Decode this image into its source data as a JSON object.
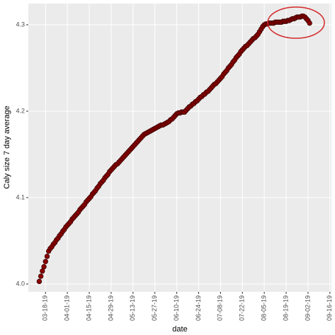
{
  "chart_data": {
    "type": "scatter",
    "x_label": "date",
    "y_label": "Caly size 7 day average",
    "color": "#8b0000",
    "grid": true,
    "xlim": [
      "2019-03-07",
      "2019-09-17"
    ],
    "xticks": [
      {
        "value": "2019-03-18",
        "label": "03-18-19"
      },
      {
        "value": "2019-04-01",
        "label": "04-01-19"
      },
      {
        "value": "2019-04-15",
        "label": "04-15-19"
      },
      {
        "value": "2019-04-29",
        "label": "04-29-19"
      },
      {
        "value": "2019-05-13",
        "label": "05-13-19"
      },
      {
        "value": "2019-05-27",
        "label": "05-27-19"
      },
      {
        "value": "2019-06-10",
        "label": "06-10-19"
      },
      {
        "value": "2019-06-24",
        "label": "06-24-19"
      },
      {
        "value": "2019-07-08",
        "label": "07-08-19"
      },
      {
        "value": "2019-07-22",
        "label": "07-22-19"
      },
      {
        "value": "2019-08-05",
        "label": "08-05-19"
      },
      {
        "value": "2019-08-19",
        "label": "08-19-19"
      },
      {
        "value": "2019-09-02",
        "label": "09-02-19"
      },
      {
        "value": "2019-09-16",
        "label": "09-16-19"
      }
    ],
    "ylim": [
      3.991,
      4.3246
    ],
    "yticks": [
      {
        "value": 4,
        "label": "4.0"
      },
      4.1,
      4.2,
      4.3
    ],
    "x": [
      "2019-03-14",
      "2019-03-15",
      "2019-03-16",
      "2019-03-17",
      "2019-03-18",
      "2019-03-19",
      "2019-03-20",
      "2019-03-21",
      "2019-03-22",
      "2019-03-23",
      "2019-03-24",
      "2019-03-25",
      "2019-03-26",
      "2019-03-27",
      "2019-03-28",
      "2019-03-29",
      "2019-03-30",
      "2019-03-31",
      "2019-04-01",
      "2019-04-02",
      "2019-04-03",
      "2019-04-04",
      "2019-04-05",
      "2019-04-06",
      "2019-04-07",
      "2019-04-08",
      "2019-04-09",
      "2019-04-10",
      "2019-04-11",
      "2019-04-12",
      "2019-04-13",
      "2019-04-14",
      "2019-04-15",
      "2019-04-16",
      "2019-04-17",
      "2019-04-18",
      "2019-04-19",
      "2019-04-20",
      "2019-04-21",
      "2019-04-22",
      "2019-04-23",
      "2019-04-24",
      "2019-04-25",
      "2019-04-26",
      "2019-04-27",
      "2019-04-28",
      "2019-04-29",
      "2019-04-30",
      "2019-05-01",
      "2019-05-02",
      "2019-05-03",
      "2019-05-04",
      "2019-05-05",
      "2019-05-06",
      "2019-05-07",
      "2019-05-08",
      "2019-05-09",
      "2019-05-10",
      "2019-05-11",
      "2019-05-12",
      "2019-05-13",
      "2019-05-14",
      "2019-05-15",
      "2019-05-16",
      "2019-05-17",
      "2019-05-18",
      "2019-05-19",
      "2019-05-20",
      "2019-05-21",
      "2019-05-22",
      "2019-05-23",
      "2019-05-24",
      "2019-05-25",
      "2019-05-26",
      "2019-05-27",
      "2019-05-28",
      "2019-05-29",
      "2019-05-30",
      "2019-05-31",
      "2019-06-01",
      "2019-06-02",
      "2019-06-03",
      "2019-06-04",
      "2019-06-05",
      "2019-06-06",
      "2019-06-07",
      "2019-06-08",
      "2019-06-09",
      "2019-06-10",
      "2019-06-11",
      "2019-06-12",
      "2019-06-13",
      "2019-06-14",
      "2019-06-15",
      "2019-06-16",
      "2019-06-17",
      "2019-06-18",
      "2019-06-19",
      "2019-06-20",
      "2019-06-21",
      "2019-06-22",
      "2019-06-23",
      "2019-06-24",
      "2019-06-25",
      "2019-06-26",
      "2019-06-27",
      "2019-06-28",
      "2019-06-29",
      "2019-06-30",
      "2019-07-01",
      "2019-07-02",
      "2019-07-03",
      "2019-07-04",
      "2019-07-05",
      "2019-07-06",
      "2019-07-07",
      "2019-07-08",
      "2019-07-09",
      "2019-07-10",
      "2019-07-11",
      "2019-07-12",
      "2019-07-13",
      "2019-07-14",
      "2019-07-15",
      "2019-07-16",
      "2019-07-17",
      "2019-07-18",
      "2019-07-19",
      "2019-07-20",
      "2019-07-21",
      "2019-07-22",
      "2019-07-23",
      "2019-07-24",
      "2019-07-25",
      "2019-07-26",
      "2019-07-27",
      "2019-07-28",
      "2019-07-29",
      "2019-07-30",
      "2019-07-31",
      "2019-08-01",
      "2019-08-02",
      "2019-08-03",
      "2019-08-04",
      "2019-08-05",
      "2019-08-06",
      "2019-08-07",
      "2019-08-08",
      "2019-08-09",
      "2019-08-10",
      "2019-08-11",
      "2019-08-12",
      "2019-08-13",
      "2019-08-14",
      "2019-08-15",
      "2019-08-16",
      "2019-08-17",
      "2019-08-18",
      "2019-08-19",
      "2019-08-20",
      "2019-08-21",
      "2019-08-22",
      "2019-08-23",
      "2019-08-24",
      "2019-08-25",
      "2019-08-26",
      "2019-08-27",
      "2019-08-28",
      "2019-08-29",
      "2019-08-30",
      "2019-08-31",
      "2019-09-01",
      "2019-09-02",
      "2019-09-03"
    ],
    "values": [
      4.003,
      4.009,
      4.015,
      4.02,
      4.026,
      4.032,
      4.038,
      4.041,
      4.043,
      4.046,
      4.048,
      4.051,
      4.053,
      4.056,
      4.058,
      4.061,
      4.063,
      4.066,
      4.068,
      4.07,
      4.072,
      4.075,
      4.077,
      4.079,
      4.081,
      4.083,
      4.086,
      4.088,
      4.09,
      4.092,
      4.095,
      4.097,
      4.099,
      4.101,
      4.104,
      4.106,
      4.108,
      4.111,
      4.113,
      4.116,
      4.118,
      4.12,
      4.123,
      4.125,
      4.127,
      4.13,
      4.132,
      4.134,
      4.136,
      4.138,
      4.139,
      4.141,
      4.143,
      4.145,
      4.147,
      4.149,
      4.151,
      4.153,
      4.155,
      4.157,
      4.159,
      4.161,
      4.163,
      4.165,
      4.167,
      4.169,
      4.171,
      4.173,
      4.174,
      4.175,
      4.176,
      4.177,
      4.178,
      4.179,
      4.18,
      4.181,
      4.182,
      4.183,
      4.184,
      4.184,
      4.185,
      4.186,
      4.187,
      4.188,
      4.19,
      4.191,
      4.193,
      4.195,
      4.197,
      4.198,
      4.198,
      4.199,
      4.199,
      4.199,
      4.201,
      4.203,
      4.205,
      4.206,
      4.208,
      4.209,
      4.211,
      4.212,
      4.214,
      4.216,
      4.217,
      4.219,
      4.22,
      4.222,
      4.223,
      4.225,
      4.227,
      4.229,
      4.231,
      4.232,
      4.234,
      4.236,
      4.238,
      4.24,
      4.243,
      4.245,
      4.247,
      4.25,
      4.252,
      4.254,
      4.257,
      4.259,
      4.262,
      4.264,
      4.266,
      4.269,
      4.271,
      4.273,
      4.275,
      4.276,
      4.278,
      4.28,
      4.282,
      4.284,
      4.285,
      4.287,
      4.289,
      4.292,
      4.295,
      4.298,
      4.3,
      4.301,
      4.301,
      4.302,
      4.302,
      4.302,
      4.302,
      4.303,
      4.303,
      4.303,
      4.303,
      4.303,
      4.304,
      4.304,
      4.304,
      4.305,
      4.305,
      4.306,
      4.307,
      4.307,
      4.308,
      4.309,
      4.309,
      4.309,
      4.31,
      4.31,
      4.309,
      4.307,
      4.305,
      4.302
    ]
  }
}
